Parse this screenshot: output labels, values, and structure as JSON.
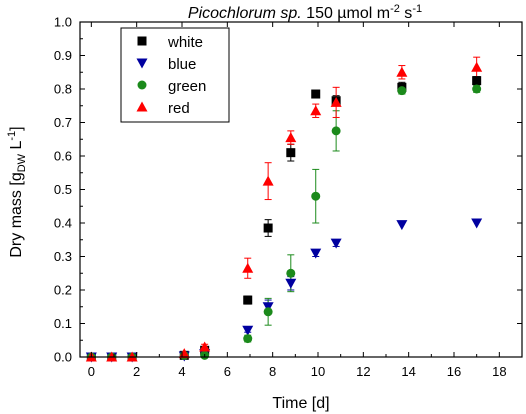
{
  "chart_data": {
    "type": "scatter",
    "title": {
      "italic": "Picochlorum sp.",
      "rest": " 150 µmol m",
      "sup1": "-2",
      "mid": " s",
      "sup2": "-1"
    },
    "xlabel": "Time [d]",
    "ylabel": {
      "main": "Dry mass [g",
      "sub": "DW",
      "mid": " L",
      "sup": "-1",
      "end": "]"
    },
    "xlim": [
      -0.5,
      19
    ],
    "ylim": [
      0,
      1.0
    ],
    "xticks": [
      0,
      2,
      4,
      6,
      8,
      10,
      12,
      14,
      16,
      18
    ],
    "yticks": [
      0.0,
      0.1,
      0.2,
      0.3,
      0.4,
      0.5,
      0.6,
      0.7,
      0.8,
      0.9,
      1.0
    ],
    "ytick_labels": [
      "0.0",
      "0.1",
      "0.2",
      "0.3",
      "0.4",
      "0.5",
      "0.6",
      "0.7",
      "0.8",
      "0.9",
      "1.0"
    ],
    "legend_position": "top-left",
    "series": [
      {
        "name": "white",
        "marker": "square",
        "color": "#000000",
        "x": [
          0,
          0.9,
          1.8,
          4.1,
          5.0,
          6.9,
          7.8,
          8.8,
          9.9,
          10.8,
          13.7,
          17.0
        ],
        "y": [
          0.0,
          0.0,
          0.0,
          0.005,
          0.02,
          0.17,
          0.385,
          0.61,
          0.785,
          0.765,
          0.805,
          0.825
        ],
        "err": [
          0,
          0,
          0,
          0.003,
          0.005,
          0.012,
          0.025,
          0.025,
          0,
          0.015,
          0.015,
          0.012
        ]
      },
      {
        "name": "blue",
        "marker": "triangle-down",
        "color": "#0000a0",
        "x": [
          0,
          0.9,
          1.8,
          4.1,
          5.0,
          6.9,
          7.8,
          8.8,
          9.9,
          10.8,
          13.7,
          17.0
        ],
        "y": [
          0.0,
          0.0,
          0.0,
          0.003,
          0.01,
          0.08,
          0.15,
          0.22,
          0.31,
          0.34,
          0.395,
          0.4
        ],
        "err": [
          0,
          0,
          0,
          0,
          0.003,
          0.006,
          0.02,
          0.02,
          0.01,
          0.01,
          0,
          0
        ]
      },
      {
        "name": "green",
        "marker": "circle",
        "color": "#1b8a1b",
        "x": [
          0,
          0.9,
          1.8,
          4.1,
          5.0,
          6.9,
          7.8,
          8.8,
          9.9,
          10.8,
          13.7,
          17.0
        ],
        "y": [
          0.0,
          0.0,
          0.0,
          0.005,
          0.005,
          0.055,
          0.135,
          0.25,
          0.48,
          0.675,
          0.795,
          0.8
        ],
        "err": [
          0,
          0,
          0,
          0,
          0.003,
          0.01,
          0.04,
          0.055,
          0.08,
          0.06,
          0.01,
          0.01
        ]
      },
      {
        "name": "red",
        "marker": "triangle-up",
        "color": "#ff0000",
        "x": [
          0,
          0.9,
          1.8,
          4.1,
          5.0,
          6.9,
          7.8,
          8.8,
          9.9,
          10.8,
          13.7,
          17.0
        ],
        "y": [
          0.0,
          0.0,
          0.0,
          0.01,
          0.03,
          0.265,
          0.525,
          0.655,
          0.735,
          0.76,
          0.85,
          0.865
        ],
        "err": [
          0,
          0,
          0,
          0.003,
          0.008,
          0.03,
          0.055,
          0.02,
          0.02,
          0.045,
          0.02,
          0.03
        ]
      }
    ]
  }
}
